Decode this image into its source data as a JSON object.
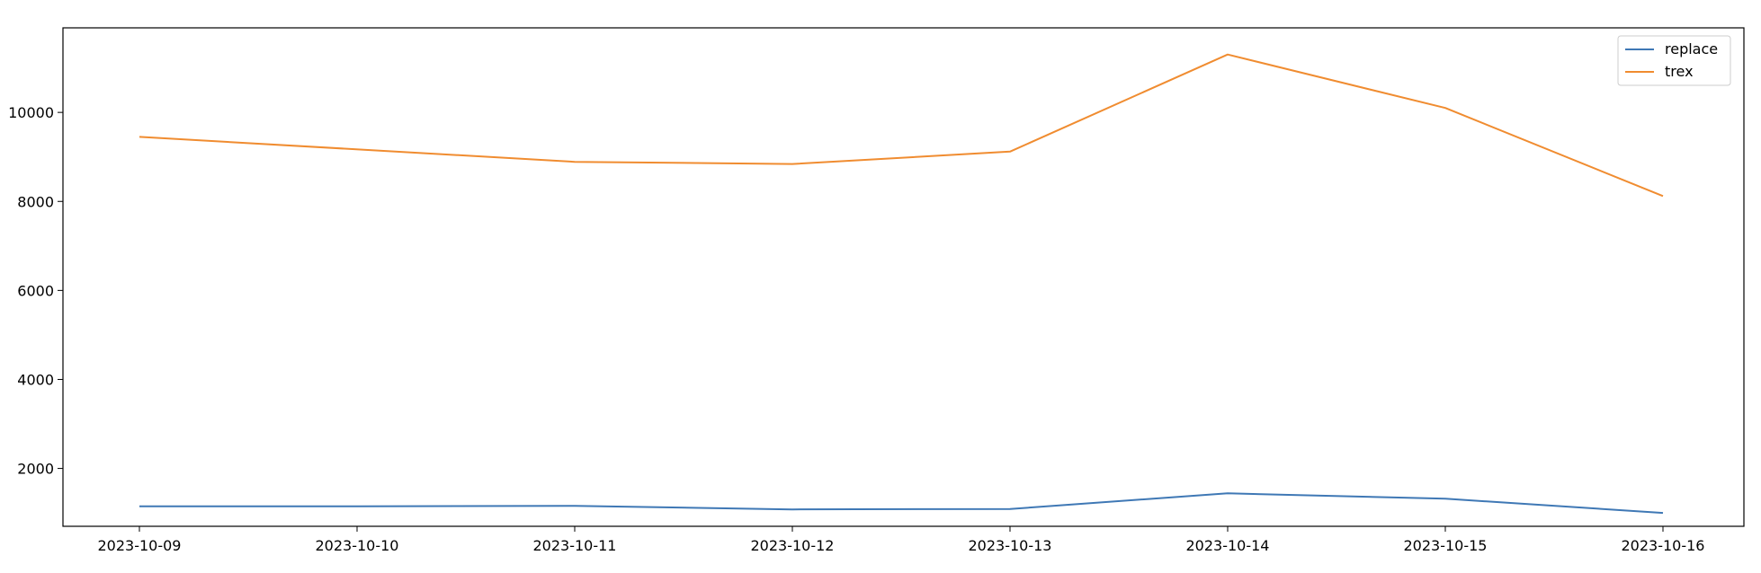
{
  "chart_data": {
    "type": "line",
    "title": "",
    "xlabel": "",
    "ylabel": "",
    "x": [
      "2023-10-09",
      "2023-10-10",
      "2023-10-11",
      "2023-10-12",
      "2023-10-13",
      "2023-10-14",
      "2023-10-15",
      "2023-10-16"
    ],
    "x_ticks": [
      "2023-10-09",
      "2023-10-10",
      "2023-10-11",
      "2023-10-12",
      "2023-10-13",
      "2023-10-14",
      "2023-10-15",
      "2023-10-16"
    ],
    "y_ticks": [
      "2000",
      "4000",
      "6000",
      "8000",
      "10000"
    ],
    "ylim": [
      700,
      11900
    ],
    "grid": false,
    "legend_position": "top-right",
    "series": [
      {
        "name": "replace",
        "color": "#3f78b5",
        "values": [
          1150,
          1150,
          1160,
          1080,
          1090,
          1440,
          1320,
          1000
        ]
      },
      {
        "name": "trex",
        "color": "#f08c30",
        "values": [
          9450,
          null,
          8890,
          8840,
          9120,
          11300,
          10100,
          8120
        ]
      }
    ]
  }
}
